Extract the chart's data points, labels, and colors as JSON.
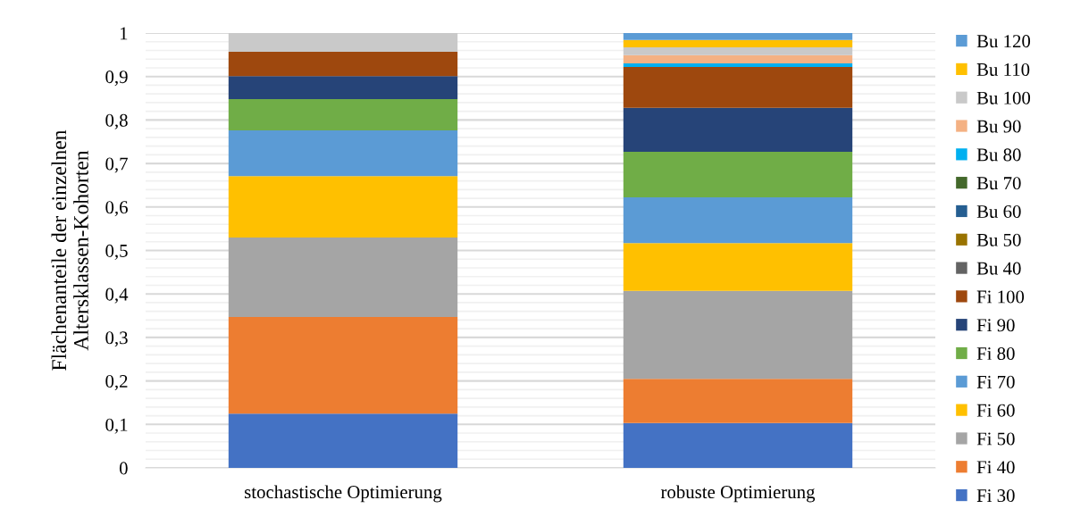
{
  "chart_data": {
    "type": "bar",
    "stacked": true,
    "ylabel": "Flächenanteile der einzelnen\nAltersklassen-Kohorten",
    "categories": [
      "stochastische Optimierung",
      "robuste Optimierung"
    ],
    "series": [
      {
        "name": "Fi 30",
        "color": "#4472c4",
        "values": [
          0.125,
          0.103
        ]
      },
      {
        "name": "Fi 40",
        "color": "#ed7d31",
        "values": [
          0.222,
          0.102
        ]
      },
      {
        "name": "Fi 50",
        "color": "#a5a5a5",
        "values": [
          0.183,
          0.202
        ]
      },
      {
        "name": "Fi 60",
        "color": "#ffc000",
        "values": [
          0.141,
          0.11
        ]
      },
      {
        "name": "Fi 70",
        "color": "#5b9bd5",
        "values": [
          0.105,
          0.105
        ]
      },
      {
        "name": "Fi 80",
        "color": "#70ad47",
        "values": [
          0.072,
          0.105
        ]
      },
      {
        "name": "Fi 90",
        "color": "#264478",
        "values": [
          0.053,
          0.101
        ]
      },
      {
        "name": "Fi 100",
        "color": "#9e480e",
        "values": [
          0.056,
          0.094
        ]
      },
      {
        "name": "Bu 40",
        "color": "#636363",
        "values": [
          0,
          0
        ]
      },
      {
        "name": "Bu 50",
        "color": "#997300",
        "values": [
          0,
          0
        ]
      },
      {
        "name": "Bu 60",
        "color": "#255e91",
        "values": [
          0,
          0
        ]
      },
      {
        "name": "Bu 70",
        "color": "#43682b",
        "values": [
          0,
          0
        ]
      },
      {
        "name": "Bu 80",
        "color": "#00b0f0",
        "values": [
          0,
          0.008
        ]
      },
      {
        "name": "Bu 90",
        "color": "#f4b183",
        "values": [
          0,
          0.019
        ]
      },
      {
        "name": "Bu 100",
        "color": "#c9c9c9",
        "values": [
          0.043,
          0.018
        ]
      },
      {
        "name": "Bu 110",
        "color": "#ffc000",
        "values": [
          0,
          0.017
        ]
      },
      {
        "name": "Bu 120",
        "color": "#5b9bd5",
        "values": [
          0,
          0.016
        ]
      }
    ],
    "ylim": [
      0,
      1
    ],
    "yticks": [
      {
        "value": 0,
        "label": "0"
      },
      {
        "value": 0.02,
        "label": null
      },
      {
        "value": 0.04,
        "label": null
      },
      {
        "value": 0.06,
        "label": null
      },
      {
        "value": 0.08,
        "label": null
      },
      {
        "value": 0.1,
        "label": "0,1"
      },
      {
        "value": 0.12,
        "label": null
      },
      {
        "value": 0.14,
        "label": null
      },
      {
        "value": 0.16,
        "label": null
      },
      {
        "value": 0.18,
        "label": null
      },
      {
        "value": 0.2,
        "label": "0,2"
      },
      {
        "value": 0.22,
        "label": null
      },
      {
        "value": 0.24,
        "label": null
      },
      {
        "value": 0.26,
        "label": null
      },
      {
        "value": 0.28,
        "label": null
      },
      {
        "value": 0.3,
        "label": "0,3"
      },
      {
        "value": 0.32,
        "label": null
      },
      {
        "value": 0.34,
        "label": null
      },
      {
        "value": 0.36,
        "label": null
      },
      {
        "value": 0.38,
        "label": null
      },
      {
        "value": 0.4,
        "label": "0,4"
      },
      {
        "value": 0.42,
        "label": null
      },
      {
        "value": 0.44,
        "label": null
      },
      {
        "value": 0.46,
        "label": null
      },
      {
        "value": 0.48,
        "label": null
      },
      {
        "value": 0.5,
        "label": "0,5"
      },
      {
        "value": 0.52,
        "label": null
      },
      {
        "value": 0.54,
        "label": null
      },
      {
        "value": 0.56,
        "label": null
      },
      {
        "value": 0.58,
        "label": null
      },
      {
        "value": 0.6,
        "label": "0,6"
      },
      {
        "value": 0.62,
        "label": null
      },
      {
        "value": 0.64,
        "label": null
      },
      {
        "value": 0.66,
        "label": null
      },
      {
        "value": 0.68,
        "label": null
      },
      {
        "value": 0.7,
        "label": "0,7"
      },
      {
        "value": 0.72,
        "label": null
      },
      {
        "value": 0.74,
        "label": null
      },
      {
        "value": 0.76,
        "label": null
      },
      {
        "value": 0.78,
        "label": null
      },
      {
        "value": 0.8,
        "label": "0,8"
      },
      {
        "value": 0.82,
        "label": null
      },
      {
        "value": 0.84,
        "label": null
      },
      {
        "value": 0.86,
        "label": null
      },
      {
        "value": 0.88,
        "label": null
      },
      {
        "value": 0.9,
        "label": "0,9"
      },
      {
        "value": 0.92,
        "label": null
      },
      {
        "value": 0.94,
        "label": null
      },
      {
        "value": 0.96,
        "label": null
      },
      {
        "value": 0.98,
        "label": null
      },
      {
        "value": 1,
        "label": "1"
      }
    ],
    "grid": "y",
    "legend": "right"
  }
}
